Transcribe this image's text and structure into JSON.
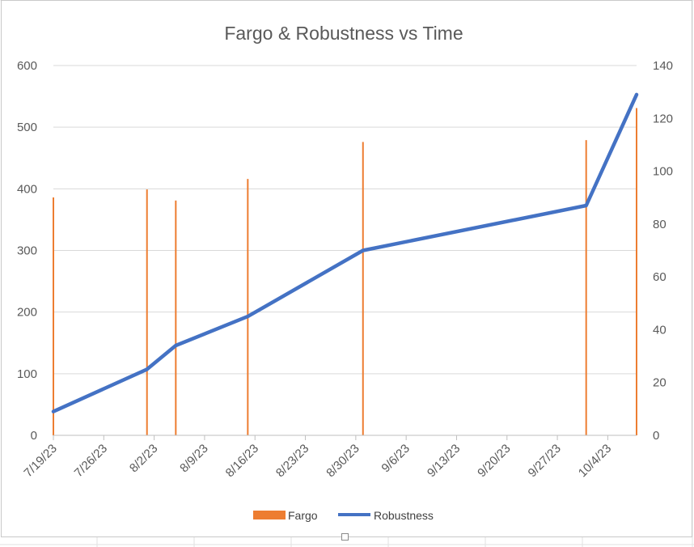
{
  "chart_data": {
    "type": "bar+line",
    "title": "Fargo & Robustness vs Time",
    "x_ticks": [
      "7/19/23",
      "7/26/23",
      "8/2/23",
      "8/9/23",
      "8/16/23",
      "8/23/23",
      "8/30/23",
      "9/6/23",
      "9/13/23",
      "9/20/23",
      "9/27/23",
      "10/4/23"
    ],
    "x_range": [
      "7/19/23",
      "10/8/23"
    ],
    "y_left": {
      "ticks": [
        0,
        100,
        200,
        300,
        400,
        500,
        600
      ],
      "range": [
        0,
        600
      ]
    },
    "y_right": {
      "ticks": [
        0,
        20,
        40,
        60,
        80,
        100,
        120,
        140
      ],
      "range": [
        0,
        140
      ]
    },
    "gridlines": true,
    "legend_position": "bottom",
    "series": [
      {
        "name": "Fargo",
        "type": "bar",
        "axis": "left",
        "color": "#ED7D31",
        "points": [
          {
            "x": "7/19/23",
            "y": 386
          },
          {
            "x": "8/1/23",
            "y": 399
          },
          {
            "x": "8/5/23",
            "y": 381
          },
          {
            "x": "8/15/23",
            "y": 416
          },
          {
            "x": "8/31/23",
            "y": 476
          },
          {
            "x": "10/1/23",
            "y": 479
          },
          {
            "x": "10/8/23",
            "y": 531
          }
        ]
      },
      {
        "name": "Robustness",
        "type": "line",
        "axis": "right",
        "color": "#4472C4",
        "points": [
          {
            "x": "7/19/23",
            "y": 9
          },
          {
            "x": "8/1/23",
            "y": 25
          },
          {
            "x": "8/5/23",
            "y": 34
          },
          {
            "x": "8/15/23",
            "y": 45
          },
          {
            "x": "8/31/23",
            "y": 70
          },
          {
            "x": "10/1/23",
            "y": 87
          },
          {
            "x": "10/8/23",
            "y": 129
          }
        ]
      }
    ]
  }
}
